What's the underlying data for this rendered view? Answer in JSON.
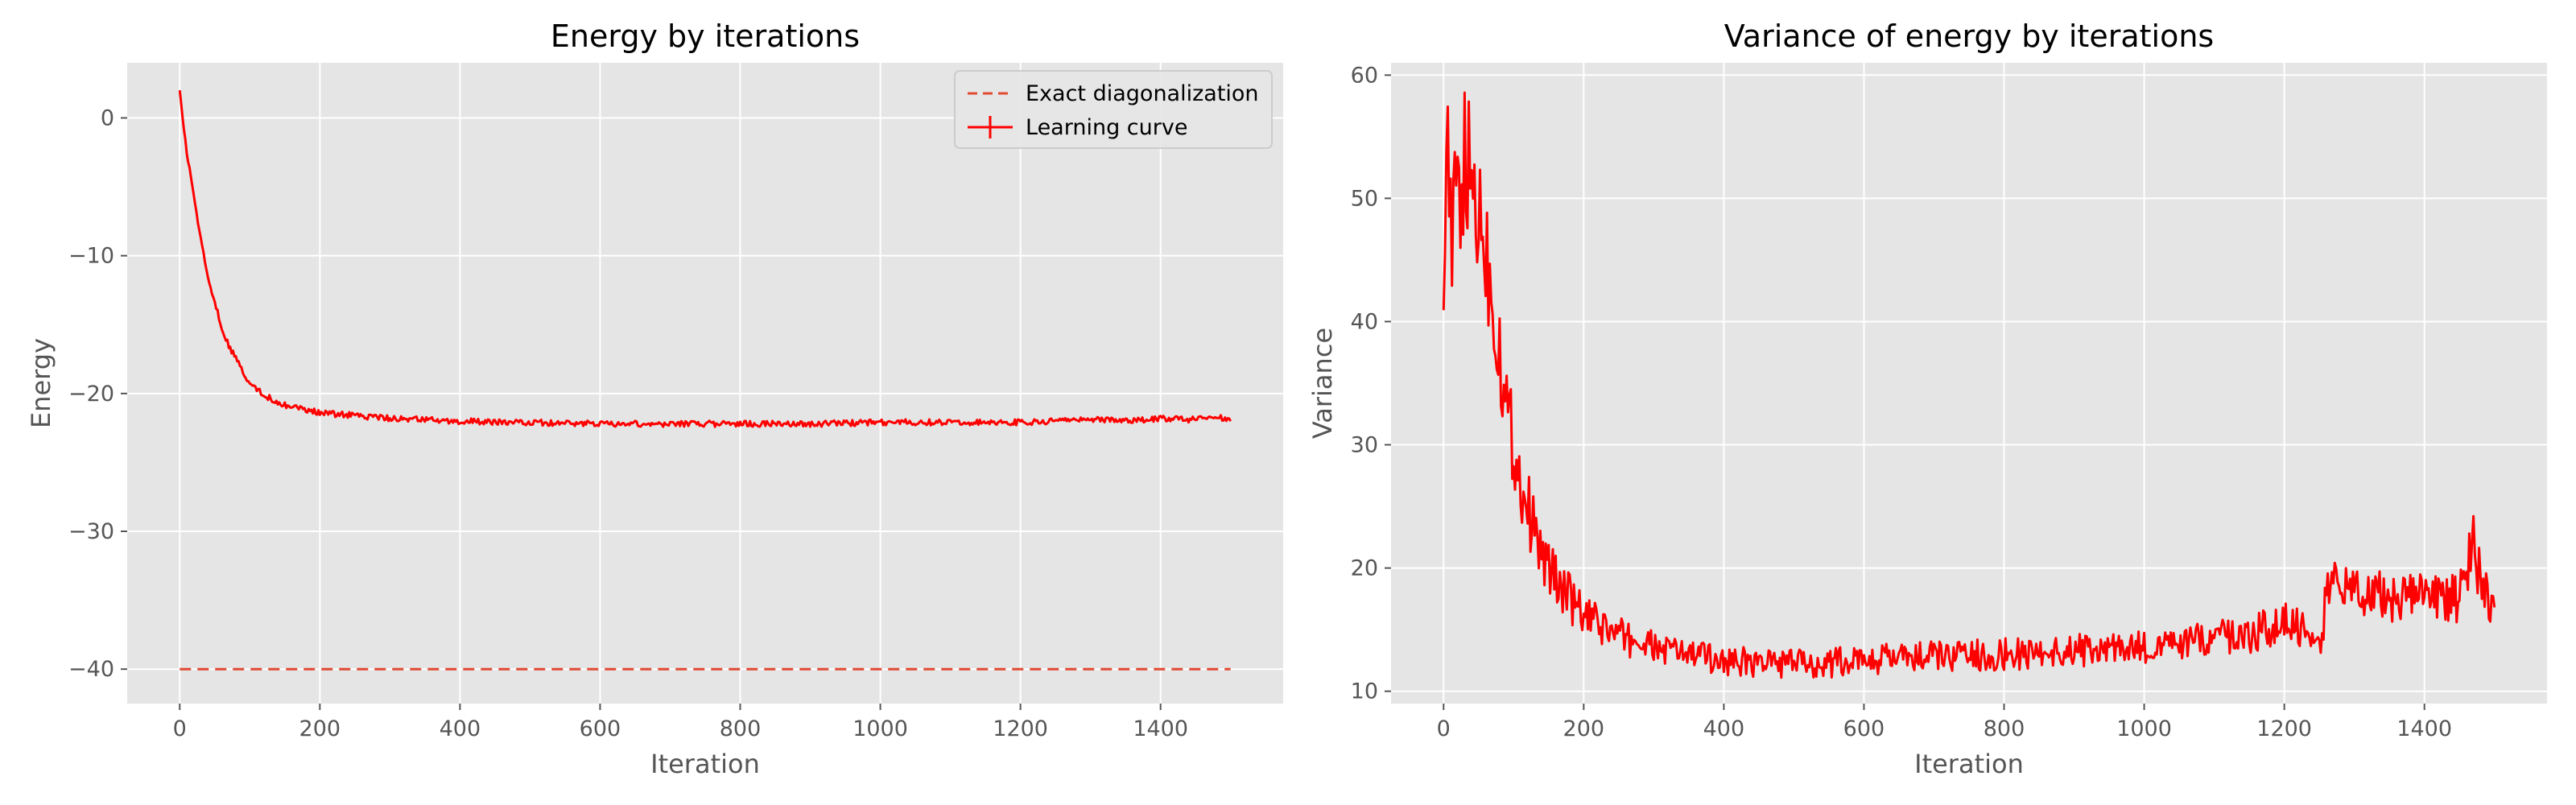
{
  "chart_data": [
    {
      "type": "line",
      "title": "Energy by iterations",
      "xlabel": "Iteration",
      "ylabel": "Energy",
      "xlim": [
        -75,
        1575
      ],
      "ylim": [
        -42.5,
        4
      ],
      "xticks": [
        0,
        200,
        400,
        600,
        800,
        1000,
        1200,
        1400
      ],
      "yticks": [
        0,
        -10,
        -20,
        -30,
        -40
      ],
      "grid": true,
      "legend": "top-right",
      "series": [
        {
          "name": "Exact diagonalization",
          "style": "dashed",
          "color": "#e24a33",
          "x": [
            0,
            1500
          ],
          "y": [
            -40,
            -40
          ]
        },
        {
          "name": "Learning curve",
          "style": "solid",
          "color": "#ff0000",
          "x": [
            0,
            10,
            20,
            30,
            40,
            50,
            60,
            70,
            80,
            90,
            100,
            120,
            140,
            160,
            180,
            200,
            250,
            300,
            350,
            400,
            500,
            600,
            700,
            800,
            900,
            1000,
            1100,
            1200,
            1250,
            1260,
            1300,
            1350,
            1400,
            1450,
            1480,
            1500
          ],
          "y": [
            2,
            -2.5,
            -5.8,
            -8.8,
            -11.4,
            -13.4,
            -15.2,
            -16.5,
            -17.5,
            -18.4,
            -19.2,
            -20.1,
            -20.6,
            -21.0,
            -21.2,
            -21.4,
            -21.6,
            -21.8,
            -21.9,
            -22.0,
            -22.1,
            -22.2,
            -22.2,
            -22.2,
            -22.2,
            -22.1,
            -22.1,
            -22.1,
            -22.0,
            -21.8,
            -21.9,
            -22.0,
            -21.8,
            -21.9,
            -21.7,
            -22.0
          ]
        }
      ]
    },
    {
      "type": "line",
      "title": "Variance of energy by iterations",
      "xlabel": "Iteration",
      "ylabel": "Variance",
      "xlim": [
        -75,
        1575
      ],
      "ylim": [
        9,
        61
      ],
      "xticks": [
        0,
        200,
        400,
        600,
        800,
        1000,
        1200,
        1400
      ],
      "yticks": [
        10,
        20,
        30,
        40,
        50,
        60
      ],
      "grid": true,
      "series": [
        {
          "color": "#ff0000",
          "x": [
            0,
            5,
            10,
            20,
            30,
            40,
            50,
            60,
            70,
            80,
            90,
            100,
            110,
            120,
            130,
            140,
            150,
            175,
            200,
            250,
            300,
            350,
            400,
            450,
            500,
            550,
            600,
            700,
            800,
            900,
            1000,
            1050,
            1100,
            1150,
            1200,
            1240,
            1255,
            1260,
            1280,
            1300,
            1350,
            1400,
            1450,
            1470,
            1480,
            1500
          ],
          "y": [
            47,
            58,
            46,
            50,
            52,
            51,
            49,
            46,
            42,
            38,
            33,
            30,
            27,
            25,
            23,
            21,
            20,
            18,
            16,
            14.5,
            13.5,
            13,
            12.5,
            12.3,
            12.2,
            12.3,
            12.5,
            12.8,
            13.0,
            13.3,
            13.5,
            13.8,
            14.2,
            14.6,
            15.5,
            15,
            14.5,
            19,
            18,
            18.5,
            17.5,
            18,
            17.5,
            22,
            19,
            17
          ]
        }
      ]
    }
  ]
}
